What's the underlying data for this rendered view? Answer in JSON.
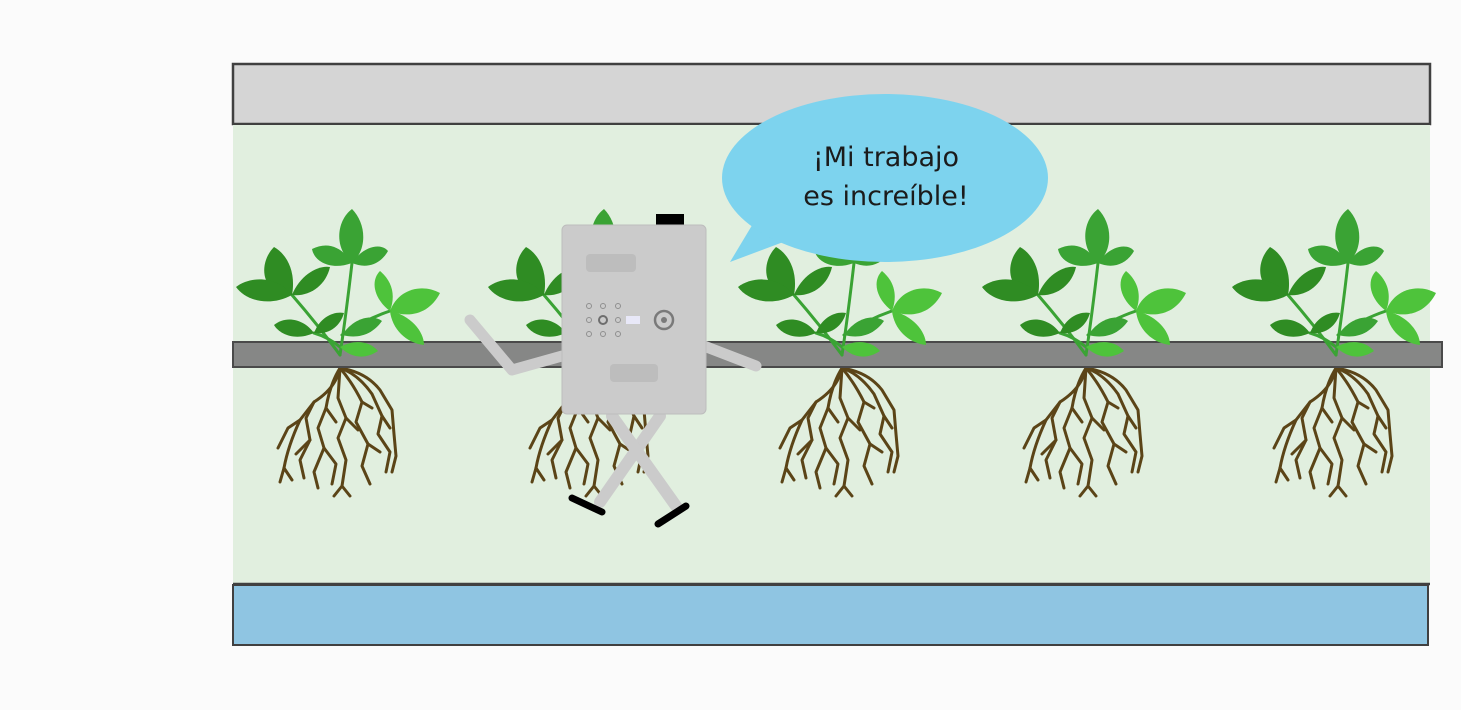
{
  "speech_bubble": {
    "line1": "¡Mi trabajo",
    "line2": "es increíble!"
  },
  "colors": {
    "background": "#fbfbfb",
    "channel_cover": "#d5d5d5",
    "growing_zone": "#e1efdf",
    "rail": "#868786",
    "water": "#8fc5e2",
    "bubble": "#7dd3ee",
    "robot_body": "#cbcbcb",
    "leaf_dark": "#2f8c23",
    "leaf_mid": "#3aa334",
    "leaf_light": "#4ec33b",
    "roots": "#5b4417"
  },
  "icons": {
    "plants": "plant-icon",
    "robot": "robot-icon",
    "bubble": "speech-bubble-icon"
  }
}
